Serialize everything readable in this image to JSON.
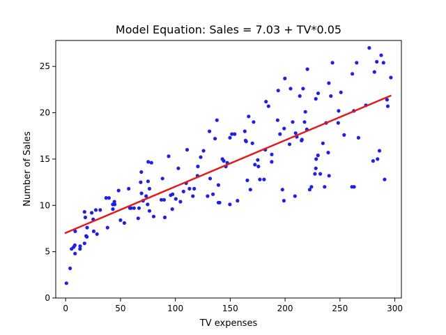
{
  "chart_data": {
    "type": "scatter",
    "title": "Model Equation: Sales = 7.03 + TV*0.05",
    "xlabel": "TV expenses",
    "ylabel": "Number of Sales",
    "xlim": [
      -9,
      306
    ],
    "ylim": [
      0,
      27.8
    ],
    "xticks": [
      0,
      50,
      100,
      150,
      200,
      250,
      300
    ],
    "yticks": [
      0,
      5,
      10,
      15,
      20,
      25
    ],
    "grid": false,
    "colors": {
      "points": "#1f1fe6",
      "line": "#e41a1c"
    },
    "fit_line": {
      "intercept": 7.03,
      "slope": 0.05,
      "x": [
        0,
        296
      ]
    },
    "points": [
      [
        0.7,
        1.6
      ],
      [
        4.1,
        3.2
      ],
      [
        5.4,
        5.3
      ],
      [
        7.3,
        5.5
      ],
      [
        8.6,
        4.8
      ],
      [
        8.7,
        7.2
      ],
      [
        8.4,
        5.7
      ],
      [
        13.1,
        5.3
      ],
      [
        13.2,
        5.6
      ],
      [
        17.2,
        5.9
      ],
      [
        17.9,
        8.7
      ],
      [
        17.2,
        9.3
      ],
      [
        18.7,
        6.7
      ],
      [
        19.4,
        6.6
      ],
      [
        19.6,
        7.6
      ],
      [
        23.8,
        9.2
      ],
      [
        25.1,
        8.5
      ],
      [
        25.6,
        7.2
      ],
      [
        27.5,
        9.5
      ],
      [
        28.6,
        6.9
      ],
      [
        31.5,
        9.5
      ],
      [
        36.9,
        10.8
      ],
      [
        38.2,
        7.6
      ],
      [
        39.5,
        10.8
      ],
      [
        43.0,
        10.1
      ],
      [
        43.1,
        9.6
      ],
      [
        44.5,
        10.4
      ],
      [
        44.7,
        10.1
      ],
      [
        48.3,
        11.6
      ],
      [
        50.0,
        8.4
      ],
      [
        53.5,
        8.1
      ],
      [
        57.5,
        11.8
      ],
      [
        58.6,
        9.7
      ],
      [
        59.6,
        9.7
      ],
      [
        62.3,
        9.7
      ],
      [
        66.1,
        8.6
      ],
      [
        66.9,
        9.7
      ],
      [
        68.4,
        12.5
      ],
      [
        69.0,
        13.6
      ],
      [
        69.2,
        11.3
      ],
      [
        70.6,
        10.5
      ],
      [
        73.4,
        11.0
      ],
      [
        74.7,
        10.1
      ],
      [
        75.1,
        12.6
      ],
      [
        75.3,
        14.7
      ],
      [
        76.4,
        9.4
      ],
      [
        76.4,
        11.8
      ],
      [
        78.2,
        14.6
      ],
      [
        80.2,
        8.8
      ],
      [
        87.2,
        10.6
      ],
      [
        88.3,
        12.9
      ],
      [
        89.7,
        10.6
      ],
      [
        90.4,
        8.7
      ],
      [
        93.9,
        15.3
      ],
      [
        95.7,
        11.1
      ],
      [
        97.2,
        9.6
      ],
      [
        97.5,
        11.2
      ],
      [
        100.4,
        10.7
      ],
      [
        102.7,
        14.0
      ],
      [
        104.6,
        10.4
      ],
      [
        107.4,
        11.5
      ],
      [
        109.8,
        12.4
      ],
      [
        110.7,
        16.0
      ],
      [
        112.9,
        11.8
      ],
      [
        116.0,
        11.0
      ],
      [
        117.2,
        11.8
      ],
      [
        120.2,
        13.2
      ],
      [
        120.5,
        14.2
      ],
      [
        123.1,
        15.2
      ],
      [
        125.7,
        15.9
      ],
      [
        129.4,
        11.0
      ],
      [
        131.1,
        18.0
      ],
      [
        131.7,
        12.9
      ],
      [
        134.3,
        11.2
      ],
      [
        136.2,
        17.2
      ],
      [
        137.9,
        19.2
      ],
      [
        139.2,
        12.2
      ],
      [
        139.3,
        10.3
      ],
      [
        140.3,
        10.3
      ],
      [
        142.9,
        15.0
      ],
      [
        144.1,
        14.8
      ],
      [
        147.3,
        14.6
      ],
      [
        149.7,
        10.1
      ],
      [
        149.8,
        17.3
      ],
      [
        151.5,
        17.7
      ],
      [
        156.6,
        10.5
      ],
      [
        163.3,
        18.0
      ],
      [
        164.5,
        16.9
      ],
      [
        165.6,
        12.7
      ],
      [
        166.8,
        19.6
      ],
      [
        168.4,
        11.7
      ],
      [
        170.2,
        16.7
      ],
      [
        171.3,
        19.0
      ],
      [
        172.5,
        14.4
      ],
      [
        175.1,
        14.9
      ],
      [
        175.7,
        14.2
      ],
      [
        177.0,
        12.8
      ],
      [
        180.8,
        12.8
      ],
      [
        182.6,
        21.2
      ],
      [
        184.9,
        20.7
      ],
      [
        187.8,
        14.7
      ],
      [
        187.9,
        15.5
      ],
      [
        193.2,
        19.2
      ],
      [
        193.7,
        22.4
      ],
      [
        195.4,
        17.7
      ],
      [
        197.6,
        11.7
      ],
      [
        198.9,
        10.5
      ],
      [
        199.1,
        18.3
      ],
      [
        199.8,
        23.7
      ],
      [
        204.1,
        16.6
      ],
      [
        205.0,
        22.6
      ],
      [
        206.9,
        19.0
      ],
      [
        209.6,
        17.8
      ],
      [
        210.7,
        17.4
      ],
      [
        213.4,
        21.8
      ],
      [
        215.4,
        17.1
      ],
      [
        216.4,
        22.6
      ],
      [
        217.7,
        19.0
      ],
      [
        218.5,
        20.1
      ],
      [
        219.8,
        18.2
      ],
      [
        220.3,
        24.7
      ],
      [
        222.4,
        11.7
      ],
      [
        224.0,
        12.0
      ],
      [
        227.2,
        13.4
      ],
      [
        228.0,
        21.5
      ],
      [
        228.3,
        15.0
      ],
      [
        230.1,
        22.1
      ],
      [
        232.1,
        13.4
      ],
      [
        234.5,
        16.7
      ],
      [
        237.4,
        18.9
      ],
      [
        239.3,
        15.7
      ],
      [
        239.9,
        23.2
      ],
      [
        240.1,
        13.2
      ],
      [
        241.7,
        21.8
      ],
      [
        243.2,
        25.4
      ],
      [
        248.4,
        18.9
      ],
      [
        248.8,
        20.2
      ],
      [
        250.9,
        22.2
      ],
      [
        253.8,
        17.6
      ],
      [
        261.3,
        24.2
      ],
      [
        262.9,
        12.0
      ],
      [
        262.7,
        20.2
      ],
      [
        265.2,
        25.4
      ],
      [
        266.9,
        17.3
      ],
      [
        273.7,
        20.8
      ],
      [
        276.7,
        27.0
      ],
      [
        280.2,
        14.8
      ],
      [
        281.4,
        24.4
      ],
      [
        283.6,
        25.5
      ],
      [
        284.3,
        15.0
      ],
      [
        286.0,
        15.9
      ],
      [
        287.6,
        26.2
      ],
      [
        289.7,
        25.4
      ],
      [
        290.7,
        12.8
      ],
      [
        292.9,
        21.4
      ],
      [
        293.6,
        20.7
      ],
      [
        296.4,
        23.8
      ],
      [
        230.0,
        15.4
      ],
      [
        215.0,
        17.0
      ],
      [
        261.0,
        12.0
      ],
      [
        236.0,
        12.0
      ],
      [
        182.0,
        16.0
      ],
      [
        146.0,
        14.2
      ],
      [
        209.0,
        11.0
      ],
      [
        228.0,
        14.0
      ],
      [
        164.0,
        17.0
      ],
      [
        154.0,
        17.7
      ]
    ]
  }
}
